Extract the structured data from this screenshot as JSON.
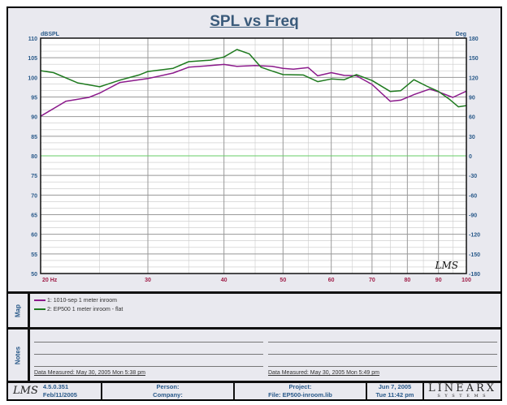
{
  "chart_data": {
    "type": "line",
    "title": "SPL vs Freq",
    "ylabel": "dBSPL",
    "y2label": "Deg",
    "xlabel": "Hz",
    "xscale": "log",
    "xlim": [
      20,
      100
    ],
    "ylim": [
      50,
      110
    ],
    "y2lim": [
      -180,
      180
    ],
    "xticks": [
      "20 Hz",
      "30",
      "40",
      "50",
      "60",
      "70",
      "80",
      "90",
      "100"
    ],
    "xtick_values": [
      20,
      30,
      40,
      50,
      60,
      70,
      80,
      90,
      100
    ],
    "yticks": [
      110,
      105,
      100,
      95,
      90,
      85,
      80,
      75,
      70,
      65,
      60,
      55,
      50
    ],
    "y2ticks": [
      180,
      150,
      120,
      90,
      60,
      30,
      0,
      -30,
      -60,
      -90,
      -120,
      -150,
      -180
    ],
    "grid": true,
    "series": [
      {
        "name": "1: 1010-sep 1 meter inroom",
        "color": "#8b1a8b",
        "x": [
          20,
          22,
          24,
          25,
          27,
          30,
          33,
          35,
          38,
          40,
          42,
          45,
          48,
          50,
          52,
          55,
          57,
          60,
          63,
          66,
          70,
          75,
          78,
          82,
          87,
          90,
          95,
          100
        ],
        "y": [
          90.1,
          93.9,
          94.9,
          96,
          98.7,
          99.7,
          101.1,
          102.6,
          103,
          103.3,
          102.8,
          103,
          102.8,
          102.3,
          102.1,
          102.5,
          100.4,
          101.2,
          100.5,
          100.4,
          98.2,
          93.9,
          94.2,
          95.6,
          97,
          96.3,
          94.9,
          96.5
        ]
      },
      {
        "name": "2: EP500  1 meter inroom - flat",
        "color": "#1e7a1e",
        "x": [
          20,
          21,
          23,
          25,
          27,
          29,
          30,
          33,
          35,
          38,
          40,
          42,
          44,
          46,
          48,
          50,
          54,
          57,
          60,
          63,
          66,
          70,
          75,
          78,
          82,
          86,
          90,
          94,
          97,
          100
        ],
        "y": [
          101.7,
          101.2,
          98.6,
          97.6,
          99.3,
          100.6,
          101.5,
          102.3,
          104,
          104.4,
          105.2,
          107.1,
          106,
          102.6,
          101.6,
          100.7,
          100.6,
          98.9,
          99.6,
          99.4,
          100.7,
          99.2,
          96.4,
          96.6,
          99.4,
          97.8,
          96.4,
          94.3,
          92.5,
          92.8
        ]
      }
    ]
  },
  "map": {
    "label": "Map"
  },
  "notes": {
    "label": "Notes",
    "measured_left": "Data Measured: May 30, 2005  Mon  5:38 pm",
    "measured_right": "Data Measured: May 30, 2005  Mon  5:49 pm"
  },
  "footer": {
    "logo": "LMS",
    "version": "4.5.0.351",
    "build_date": "Feb/11/2005",
    "person": "Person:",
    "company": "Company:",
    "project": "Project:",
    "file": "File: EP500-inroom.lib",
    "date": "Jun 7, 2005",
    "time": "Tue 11:42 pm",
    "brand": "LINEARX",
    "brand_sub": "S Y S T E M S"
  },
  "watermark": "LMS"
}
